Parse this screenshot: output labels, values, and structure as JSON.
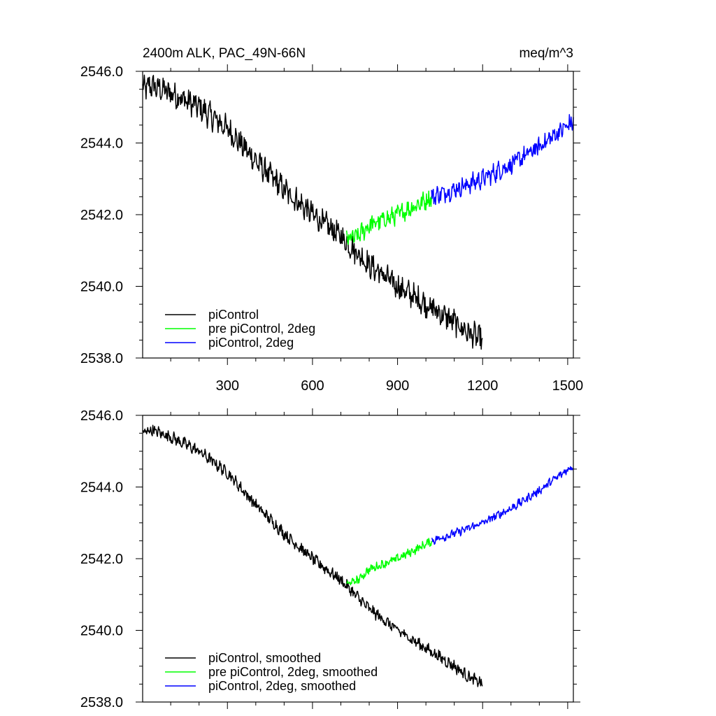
{
  "chart_data": [
    {
      "type": "line",
      "title_left": "2400m ALK, PAC_49N-66N",
      "title_right": "meq/m^3",
      "xlim": [
        1,
        1520
      ],
      "ylim": [
        2538.0,
        2546.0
      ],
      "x_ticks": [
        300,
        600,
        900,
        1200,
        1500
      ],
      "x_tick_labels": [
        "300",
        "600",
        "900",
        "1200",
        "1500"
      ],
      "y_ticks": [
        2538.0,
        2540.0,
        2542.0,
        2544.0,
        2546.0
      ],
      "y_tick_labels": [
        "2538.0",
        "2540.0",
        "2542.0",
        "2544.0",
        "2546.0"
      ],
      "legend_position": "bottom-left",
      "series": [
        {
          "name": "piControl",
          "color": "#000000",
          "noise": 0.3,
          "x": [
            1,
            30,
            100,
            200,
            300,
            400,
            500,
            600,
            700,
            750,
            800,
            900,
            1000,
            1100,
            1150,
            1200
          ],
          "y": [
            2545.5,
            2545.6,
            2545.4,
            2545.0,
            2544.4,
            2543.5,
            2542.7,
            2542.0,
            2541.4,
            2541.0,
            2540.6,
            2540.0,
            2539.5,
            2539.0,
            2538.7,
            2538.5
          ]
        },
        {
          "name": "pre piControl, 2deg",
          "color": "#00ff00",
          "noise": 0.22,
          "x": [
            720,
            760,
            800,
            850,
            900,
            950,
            1000,
            1020
          ],
          "y": [
            2541.3,
            2541.4,
            2541.7,
            2541.85,
            2542.0,
            2542.2,
            2542.4,
            2542.5
          ]
        },
        {
          "name": "piControl, 2deg",
          "color": "#0000ff",
          "noise": 0.22,
          "x": [
            1020,
            1100,
            1200,
            1300,
            1400,
            1450,
            1520
          ],
          "y": [
            2542.5,
            2542.7,
            2543.0,
            2543.4,
            2543.9,
            2544.2,
            2544.6
          ]
        }
      ]
    },
    {
      "type": "line",
      "title_left": "",
      "title_right": "",
      "xlim": [
        1,
        1520
      ],
      "ylim": [
        2538.0,
        2546.0
      ],
      "x_ticks": [
        300,
        600,
        900,
        1200,
        1500
      ],
      "x_tick_labels": [],
      "y_ticks": [
        2538.0,
        2540.0,
        2542.0,
        2544.0,
        2546.0
      ],
      "y_tick_labels": [
        "2538.0",
        "2540.0",
        "2542.0",
        "2544.0",
        "2546.0"
      ],
      "legend_position": "bottom-left",
      "series": [
        {
          "name": "piControl, smoothed",
          "color": "#000000",
          "noise": 0.14,
          "x": [
            1,
            30,
            100,
            200,
            300,
            400,
            500,
            600,
            700,
            750,
            800,
            900,
            1000,
            1100,
            1150,
            1200
          ],
          "y": [
            2545.5,
            2545.6,
            2545.4,
            2545.0,
            2544.4,
            2543.5,
            2542.7,
            2542.0,
            2541.4,
            2541.0,
            2540.6,
            2540.0,
            2539.5,
            2539.0,
            2538.7,
            2538.5
          ]
        },
        {
          "name": "pre piControl, 2deg, smoothed",
          "color": "#00ff00",
          "noise": 0.1,
          "x": [
            720,
            760,
            800,
            850,
            900,
            950,
            1000,
            1020
          ],
          "y": [
            2541.3,
            2541.4,
            2541.7,
            2541.85,
            2542.0,
            2542.2,
            2542.4,
            2542.5
          ]
        },
        {
          "name": "piControl, 2deg, smoothed",
          "color": "#0000ff",
          "noise": 0.1,
          "x": [
            1020,
            1100,
            1200,
            1300,
            1400,
            1450,
            1520
          ],
          "y": [
            2542.5,
            2542.7,
            2543.0,
            2543.4,
            2543.9,
            2544.2,
            2544.6
          ]
        }
      ]
    }
  ]
}
